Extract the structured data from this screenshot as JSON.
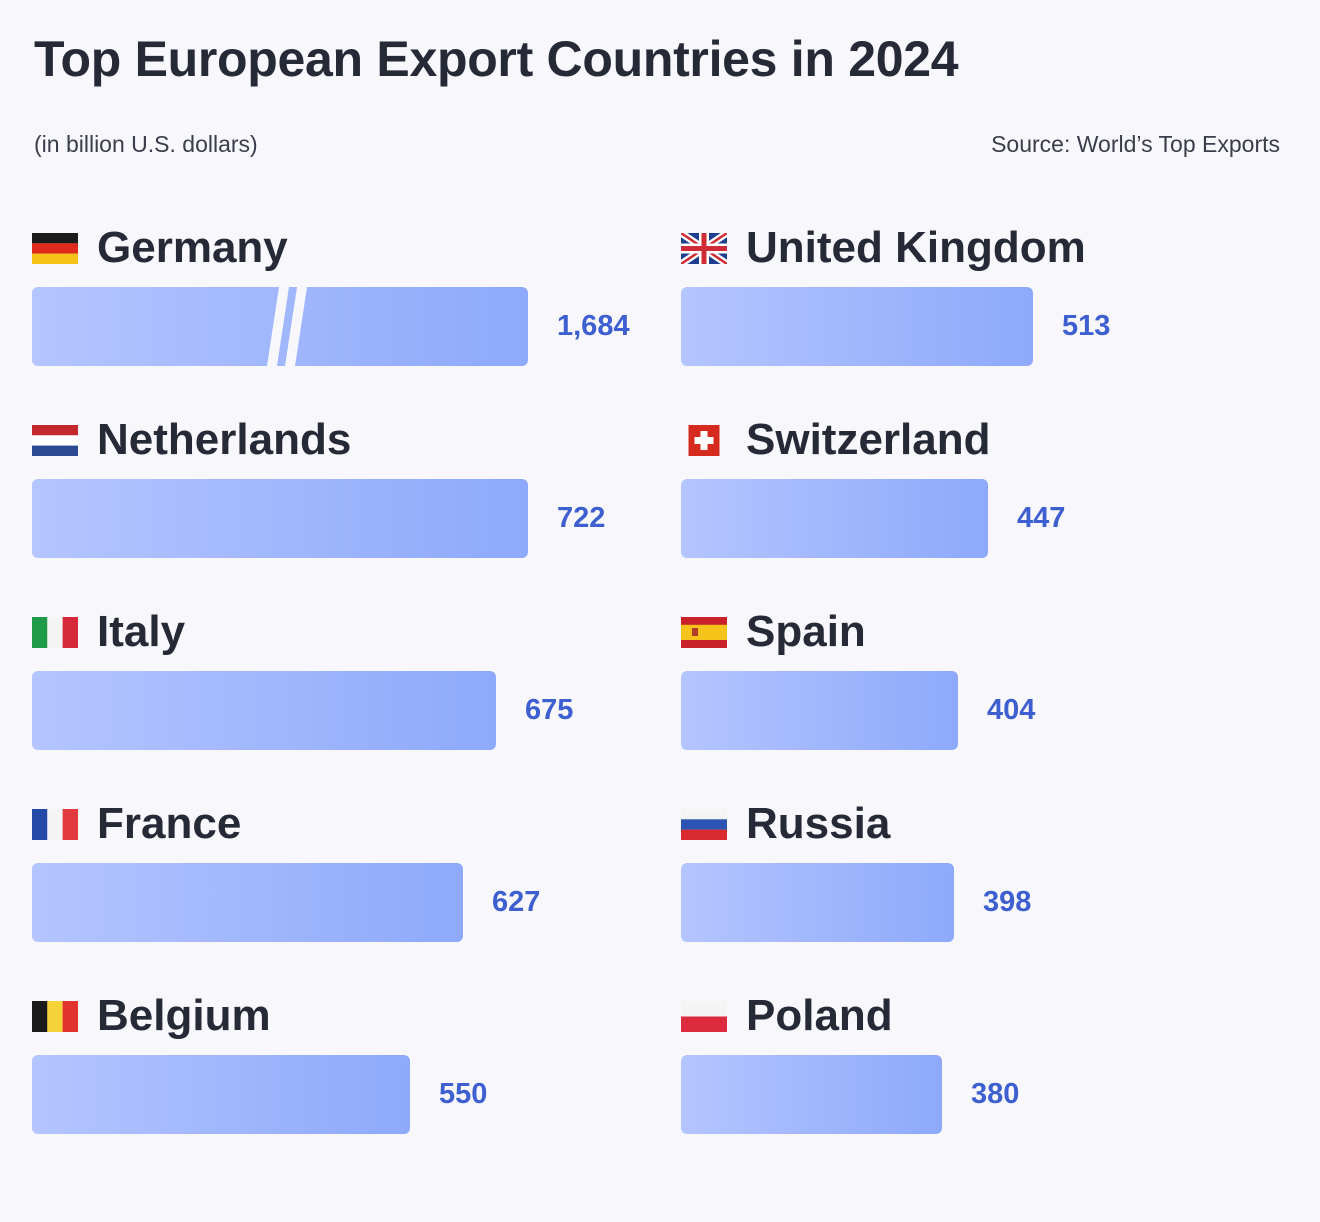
{
  "title": "Top European Export Countries in 2024",
  "subtitle": "(in billion U.S. dollars)",
  "source": "Source: World’s Top Exports",
  "colors": {
    "bar_start": "#b4c5ff",
    "bar_end": "#8ea9fb",
    "value_text": "#3e5fcf",
    "background": "#f7f7fc"
  },
  "chart_data": {
    "type": "bar",
    "axis_break": "Germany",
    "categories": [
      "Germany",
      "Netherlands",
      "Italy",
      "France",
      "Belgium",
      "United Kingdom",
      "Switzerland",
      "Spain",
      "Russia",
      "Poland"
    ],
    "values": [
      1684,
      722,
      675,
      627,
      550,
      513,
      447,
      404,
      398,
      380
    ],
    "value_labels": [
      "1,684",
      "722",
      "675",
      "627",
      "550",
      "513",
      "447",
      "404",
      "398",
      "380"
    ],
    "flags": [
      "germany-flag-icon",
      "netherlands-flag-icon",
      "italy-flag-icon",
      "france-flag-icon",
      "belgium-flag-icon",
      "uk-flag-icon",
      "switzerland-flag-icon",
      "spain-flag-icon",
      "russia-flag-icon",
      "poland-flag-icon"
    ]
  }
}
